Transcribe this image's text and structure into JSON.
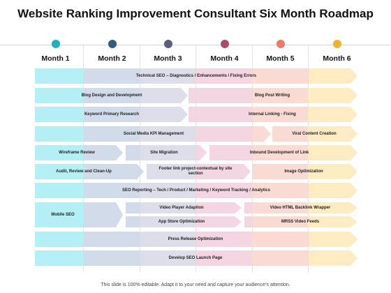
{
  "title": "Website Ranking Improvement Consultant Six Month Roadmap",
  "months": [
    {
      "label": "Month 1",
      "color": "#1ab2c4"
    },
    {
      "label": "Month 2",
      "color": "#345a82"
    },
    {
      "label": "Month 3",
      "color": "#5c5e7e"
    },
    {
      "label": "Month 4",
      "color": "#b0486f"
    },
    {
      "label": "Month 5",
      "color": "#ee7a63"
    },
    {
      "label": "Month 6",
      "color": "#f6b12a"
    }
  ],
  "tasks": {
    "technical_seo": "Technical SEO – Diagnostics / Enhancements / Fixing Errors",
    "blog_design": "Blog Design and Development",
    "blog_post_writing": "Blog Post Writing",
    "keyword_research": "Keyword Primary Research",
    "internal_linking": "Internal Linking - Fixing",
    "social_media_kpi": "Social Media KPI Management",
    "viral_content": "Viral Content Creation",
    "wireframe_review": "Wireframe Review",
    "site_migration": "Site Migration",
    "inbound_development": "Inbound Development of Link",
    "audit_review": "Audit, Review and Clean-Up",
    "footer_link": "Footer link project-contextual by site section",
    "image_optimization": "Image Optimization",
    "seo_reporting": "SEO Reporting – Tech / Product / Marketing / Keyword Tracking / Analytics",
    "mobile_seo": "Mobile SEO",
    "video_player": "Video Player Adaption",
    "video_html": "Video HTML Backlink Wrapper",
    "app_store": "App Store Optimization",
    "mrss": "MRSS Video Feeds",
    "press_release": "Press Release Optimization",
    "develop_seo": "Develop SEO Launch Page"
  },
  "footer": "This slide is 100% editable. Adapt it to your need and capture your audience’s attention."
}
